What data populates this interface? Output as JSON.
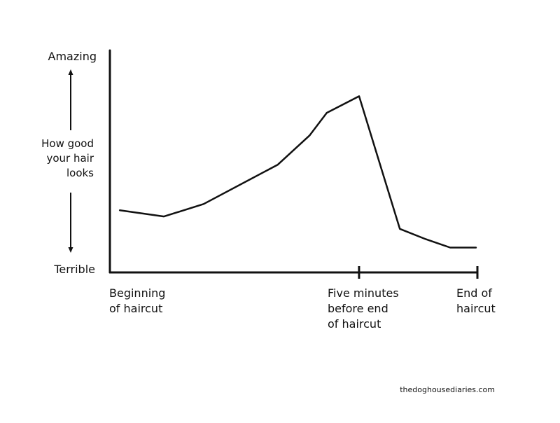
{
  "chart_data": {
    "type": "line",
    "title": "",
    "xlabel": "",
    "ylabel": [
      "How good",
      "your hair",
      "looks"
    ],
    "y_top_label": "Amazing",
    "y_bottom_label": "Terrible",
    "xlim": [
      0,
      100
    ],
    "ylim": [
      0,
      100
    ],
    "x_ticks": [
      {
        "x": 0,
        "lines": [
          "Beginning",
          "of haircut"
        ],
        "mark": false
      },
      {
        "x": 67.8,
        "lines": [
          "Five minutes",
          "before end",
          "of haircut"
        ],
        "mark": true
      },
      {
        "x": 100,
        "lines": [
          "End of",
          "haircut"
        ],
        "mark": true
      }
    ],
    "series": [
      {
        "x": [
          2.7,
          14.7,
          25.5,
          45.7,
          54.3,
          59.0,
          67.8,
          78.9,
          86.0,
          92.6,
          99.6
        ],
        "y": [
          30,
          27,
          33,
          52,
          66,
          77,
          85,
          21,
          16,
          12,
          12
        ]
      }
    ],
    "grid": false,
    "legend": "none"
  },
  "credit": "thedoghousediaries.com",
  "colors": {
    "line": "#111111",
    "background": "#ffffff"
  }
}
